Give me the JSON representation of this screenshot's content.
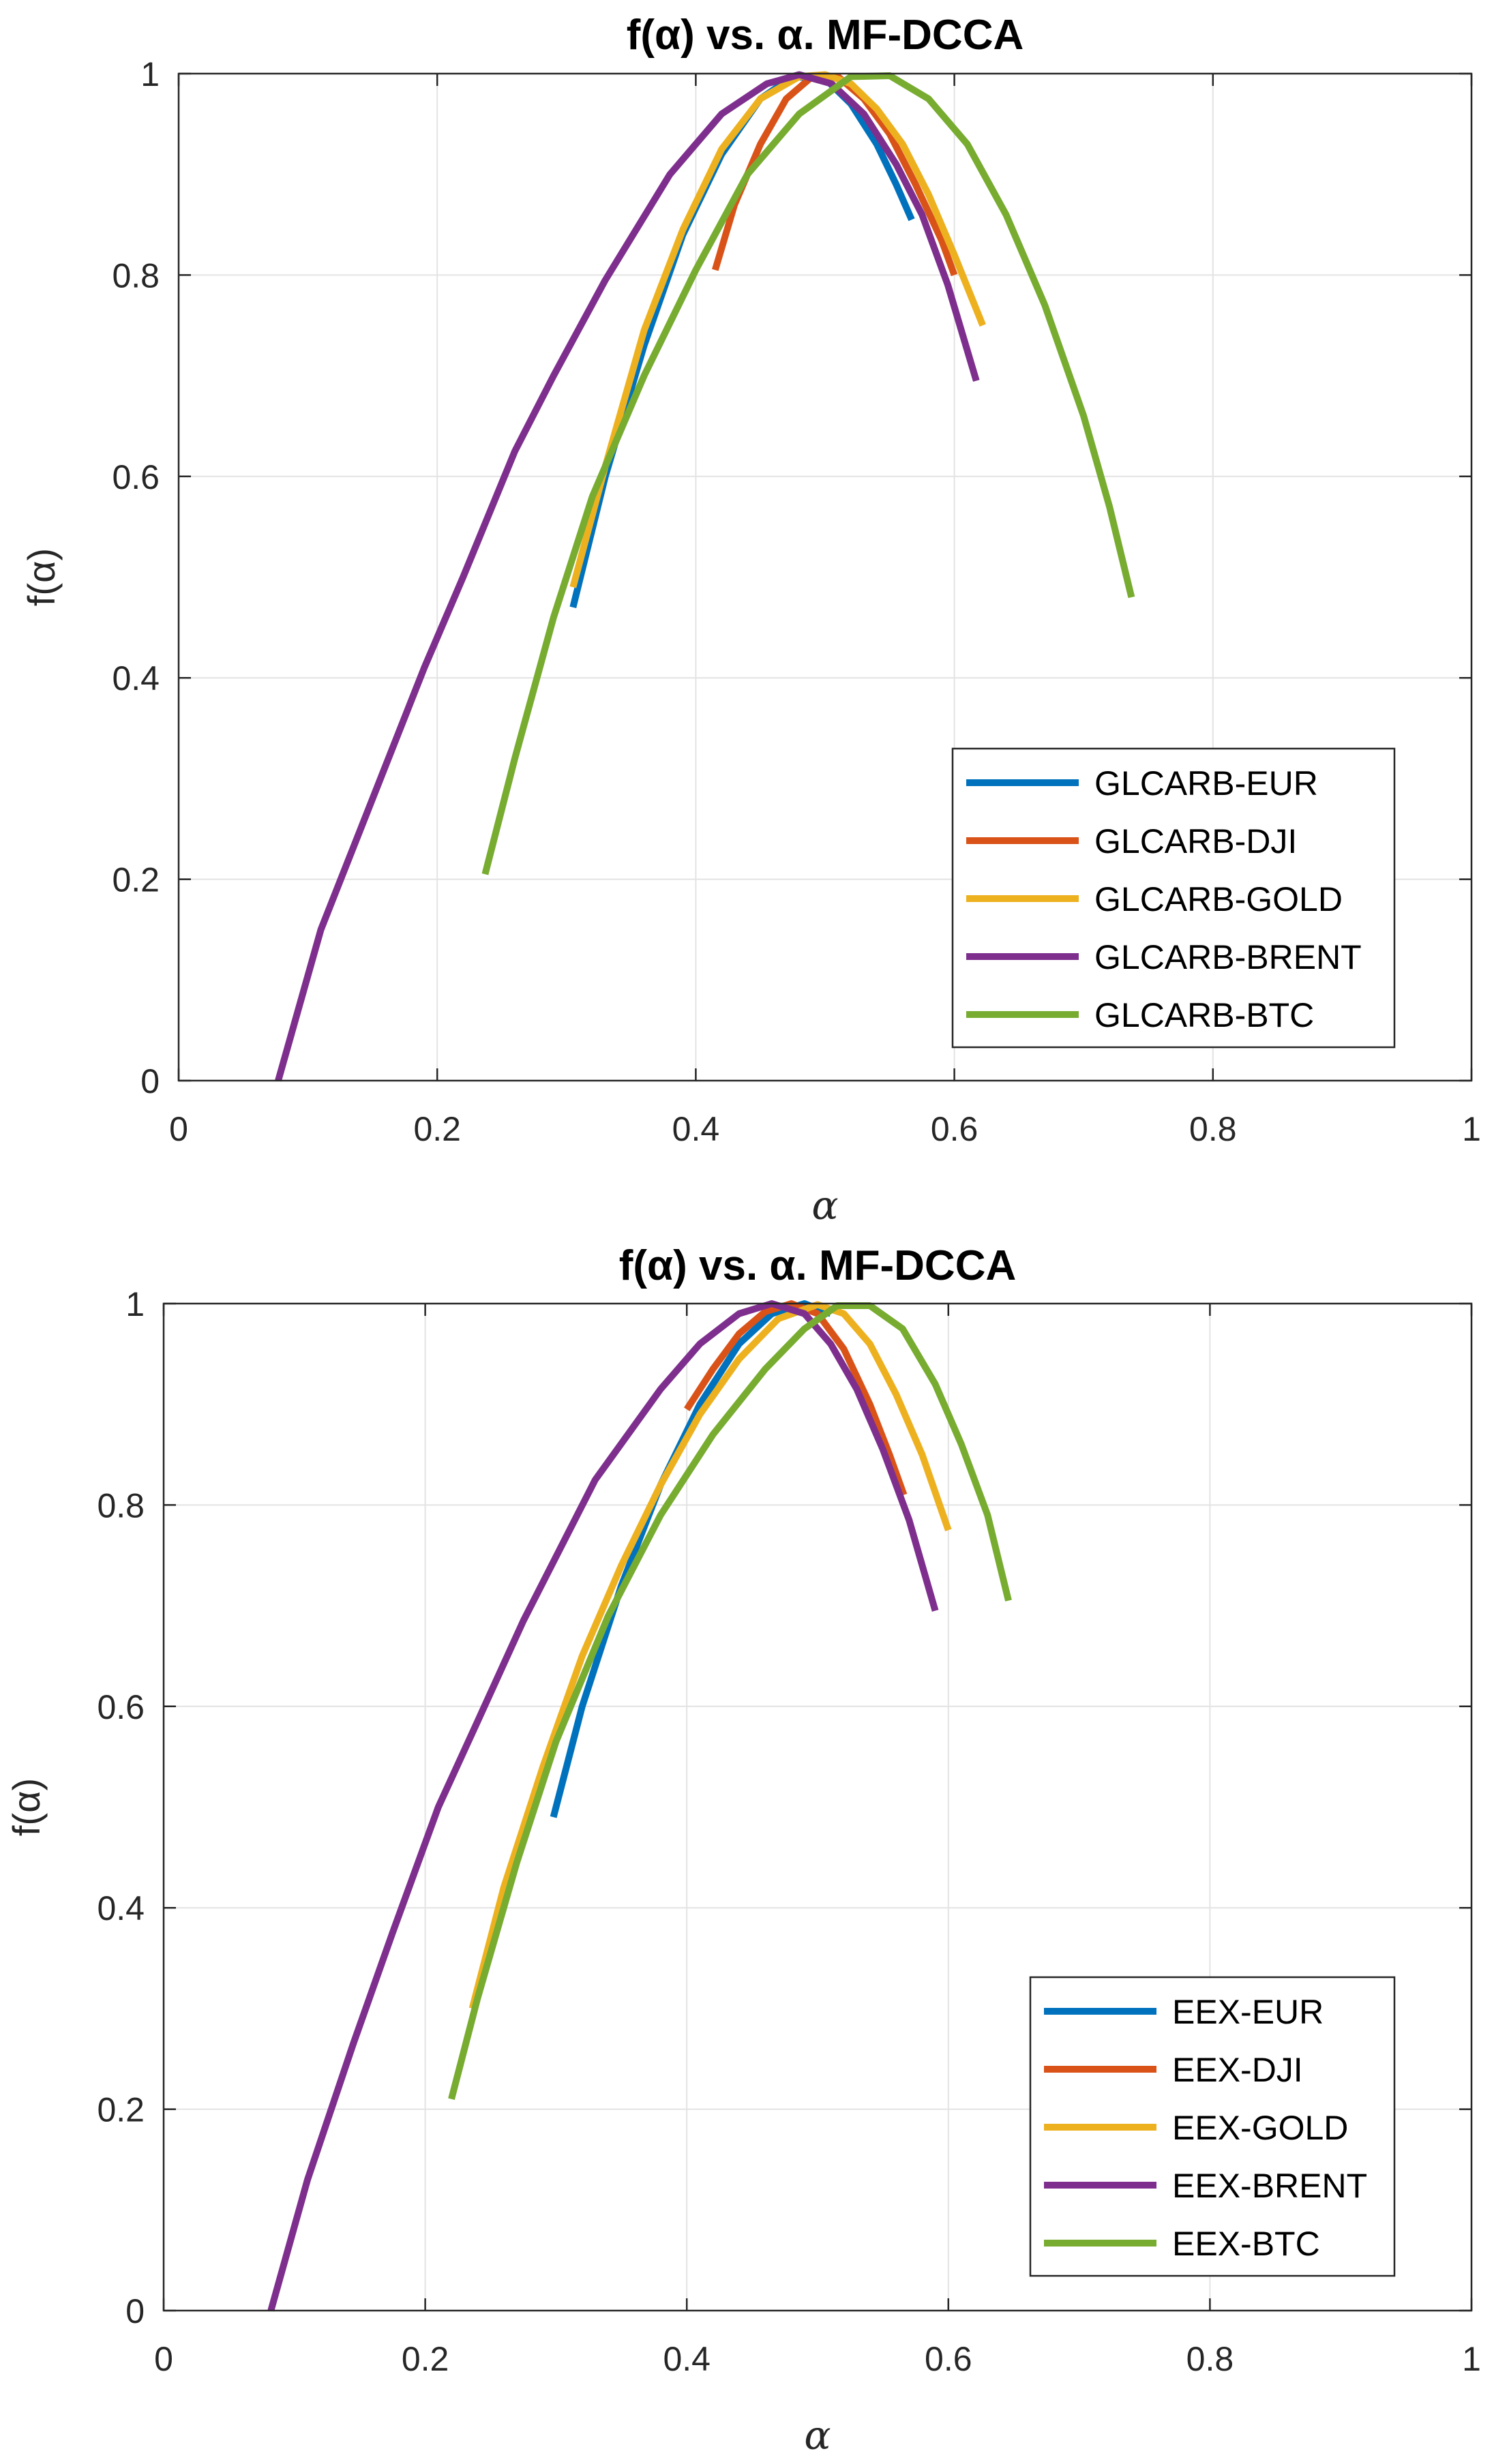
{
  "chart_data": [
    {
      "type": "line",
      "title": "f(α) vs. α. MF-DCCA",
      "xlabel": "α",
      "ylabel": "f(α)",
      "xlim": [
        0,
        1
      ],
      "ylim": [
        0,
        1
      ],
      "xticks": [
        "0",
        "0.2",
        "0.4",
        "0.6",
        "0.8",
        "1"
      ],
      "yticks": [
        "0",
        "0.2",
        "0.4",
        "0.6",
        "0.8",
        "1"
      ],
      "grid": true,
      "legend_position": "bottom-right",
      "series": [
        {
          "name": "GLCARB-EUR",
          "color": "#0072BD",
          "x": [
            0.305,
            0.33,
            0.36,
            0.39,
            0.42,
            0.45,
            0.475,
            0.5,
            0.52,
            0.54,
            0.555,
            0.567
          ],
          "y": [
            0.47,
            0.6,
            0.73,
            0.84,
            0.92,
            0.975,
            0.997,
            0.995,
            0.97,
            0.93,
            0.89,
            0.855
          ]
        },
        {
          "name": "GLCARB-DJI",
          "color": "#D95319",
          "x": [
            0.415,
            0.43,
            0.45,
            0.47,
            0.49,
            0.51,
            0.53,
            0.55,
            0.57,
            0.59,
            0.6
          ],
          "y": [
            0.805,
            0.87,
            0.93,
            0.975,
            0.997,
            0.997,
            0.975,
            0.94,
            0.89,
            0.835,
            0.8
          ]
        },
        {
          "name": "GLCARB-GOLD",
          "color": "#EDB120",
          "x": [
            0.305,
            0.33,
            0.36,
            0.39,
            0.42,
            0.45,
            0.48,
            0.5,
            0.52,
            0.54,
            0.56,
            0.58,
            0.6,
            0.622
          ],
          "y": [
            0.49,
            0.61,
            0.745,
            0.845,
            0.925,
            0.975,
            0.997,
            0.999,
            0.99,
            0.965,
            0.93,
            0.88,
            0.82,
            0.75
          ]
        },
        {
          "name": "GLCARB-BRENT",
          "color": "#7E2F8E",
          "x": [
            0.077,
            0.11,
            0.15,
            0.19,
            0.22,
            0.26,
            0.29,
            0.33,
            0.38,
            0.42,
            0.455,
            0.48,
            0.505,
            0.53,
            0.555,
            0.575,
            0.595,
            0.617
          ],
          "y": [
            0.0,
            0.15,
            0.28,
            0.41,
            0.5,
            0.625,
            0.7,
            0.795,
            0.9,
            0.96,
            0.99,
            0.999,
            0.99,
            0.96,
            0.91,
            0.86,
            0.79,
            0.695
          ]
        },
        {
          "name": "GLCARB-BTC",
          "color": "#77AC30",
          "x": [
            0.237,
            0.26,
            0.29,
            0.32,
            0.36,
            0.4,
            0.44,
            0.48,
            0.52,
            0.55,
            0.58,
            0.61,
            0.64,
            0.67,
            0.7,
            0.72,
            0.737
          ],
          "y": [
            0.205,
            0.32,
            0.46,
            0.58,
            0.7,
            0.805,
            0.9,
            0.96,
            0.997,
            0.998,
            0.975,
            0.93,
            0.86,
            0.77,
            0.66,
            0.57,
            0.48
          ]
        }
      ]
    },
    {
      "type": "line",
      "title": "f(α) vs. α. MF-DCCA",
      "xlabel": "α",
      "ylabel": "f(α)",
      "xlim": [
        0,
        1
      ],
      "ylim": [
        0,
        1
      ],
      "xticks": [
        "0",
        "0.2",
        "0.4",
        "0.6",
        "0.8",
        "1"
      ],
      "yticks": [
        "0",
        "0.2",
        "0.4",
        "0.6",
        "0.8",
        "1"
      ],
      "grid": true,
      "legend_position": "bottom-right",
      "series": [
        {
          "name": "EEX-EUR",
          "color": "#0072BD",
          "x": [
            0.298,
            0.32,
            0.35,
            0.38,
            0.41,
            0.44,
            0.465,
            0.49,
            0.51
          ],
          "y": [
            0.49,
            0.6,
            0.72,
            0.82,
            0.9,
            0.96,
            0.99,
            1.0,
            0.99
          ]
        },
        {
          "name": "EEX-DJI",
          "color": "#D95319",
          "x": [
            0.4,
            0.42,
            0.44,
            0.46,
            0.48,
            0.5,
            0.52,
            0.54,
            0.555,
            0.566
          ],
          "y": [
            0.895,
            0.935,
            0.97,
            0.992,
            1.0,
            0.99,
            0.955,
            0.9,
            0.85,
            0.81
          ]
        },
        {
          "name": "EEX-GOLD",
          "color": "#EDB120",
          "x": [
            0.236,
            0.26,
            0.29,
            0.32,
            0.35,
            0.38,
            0.41,
            0.44,
            0.47,
            0.5,
            0.52,
            0.54,
            0.56,
            0.58,
            0.6
          ],
          "y": [
            0.3,
            0.42,
            0.54,
            0.65,
            0.74,
            0.82,
            0.89,
            0.945,
            0.985,
            0.999,
            0.99,
            0.96,
            0.91,
            0.85,
            0.775
          ]
        },
        {
          "name": "EEX-BRENT",
          "color": "#7E2F8E",
          "x": [
            0.082,
            0.11,
            0.145,
            0.175,
            0.21,
            0.24,
            0.275,
            0.33,
            0.38,
            0.41,
            0.44,
            0.465,
            0.49,
            0.51,
            0.53,
            0.55,
            0.57,
            0.59
          ],
          "y": [
            0.0,
            0.13,
            0.265,
            0.375,
            0.5,
            0.585,
            0.685,
            0.825,
            0.915,
            0.96,
            0.99,
            1.0,
            0.99,
            0.96,
            0.915,
            0.855,
            0.785,
            0.695
          ]
        },
        {
          "name": "EEX-BTC",
          "color": "#77AC30",
          "x": [
            0.22,
            0.24,
            0.27,
            0.3,
            0.34,
            0.38,
            0.42,
            0.46,
            0.49,
            0.515,
            0.54,
            0.565,
            0.59,
            0.61,
            0.63,
            0.646
          ],
          "y": [
            0.21,
            0.31,
            0.445,
            0.565,
            0.69,
            0.79,
            0.87,
            0.935,
            0.975,
            0.998,
            0.998,
            0.975,
            0.92,
            0.86,
            0.79,
            0.705
          ]
        }
      ]
    }
  ]
}
